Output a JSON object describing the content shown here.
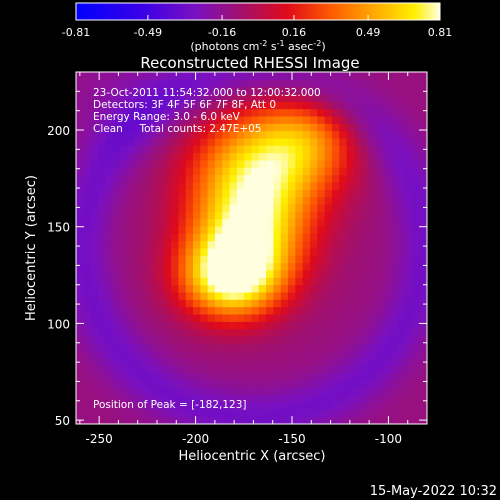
{
  "chart_data": {
    "type": "heatmap",
    "title": "Reconstructed RHESSI Image",
    "xlabel": "Heliocentric X (arcsec)",
    "ylabel": "Heliocentric Y (arcsec)",
    "xlim": [
      -262,
      -80
    ],
    "ylim": [
      48,
      230
    ],
    "x_ticks": [
      -250,
      -200,
      -150,
      -100
    ],
    "y_ticks": [
      50,
      100,
      150,
      200
    ],
    "colorbar": {
      "range": [
        -0.81,
        0.81
      ],
      "tick_values": [
        -0.81,
        -0.49,
        -0.16,
        0.16,
        0.49,
        0.81
      ],
      "tick_labels": [
        "-0.81",
        "-0.49",
        "-0.16",
        "0.16",
        "0.49",
        "0.81"
      ],
      "unit_prefix": "(photons cm",
      "unit_sup1": "-2",
      "unit_mid": " s",
      "unit_sup2": "-1",
      "unit_mid2": " asec",
      "unit_sup3": "-2",
      "unit_suffix": ")"
    },
    "annotations": [
      "23-Oct-2011 11:54:32.000 to 12:00:32.000",
      "Detectors: 3F 4F 5F 6F 7F 8F, Att 0",
      "Energy Range: 3.0 - 6.0 keV",
      "Clean     Total counts: 2.47E+05"
    ],
    "peak_label": "Position of Peak = [-182,123]",
    "peak": {
      "x": -182,
      "y": 123,
      "value": 0.81
    },
    "sources": [
      {
        "x": -182,
        "y": 124,
        "amp": 0.85,
        "sx": 18,
        "sy": 15
      },
      {
        "x": -172,
        "y": 150,
        "amp": 0.78,
        "sx": 22,
        "sy": 22
      },
      {
        "x": -165,
        "y": 185,
        "amp": 0.58,
        "sx": 26,
        "sy": 20
      },
      {
        "x": -142,
        "y": 196,
        "amp": 0.32,
        "sx": 18,
        "sy": 16
      },
      {
        "x": -232,
        "y": 214,
        "amp": -0.08,
        "sx": 25,
        "sy": 20
      }
    ],
    "background_ring": {
      "cx": -170,
      "cy": 140,
      "radius": 88,
      "width": 14,
      "amp": -0.18,
      "base": -0.12
    }
  },
  "footer_date": "15-May-2022 10:32"
}
